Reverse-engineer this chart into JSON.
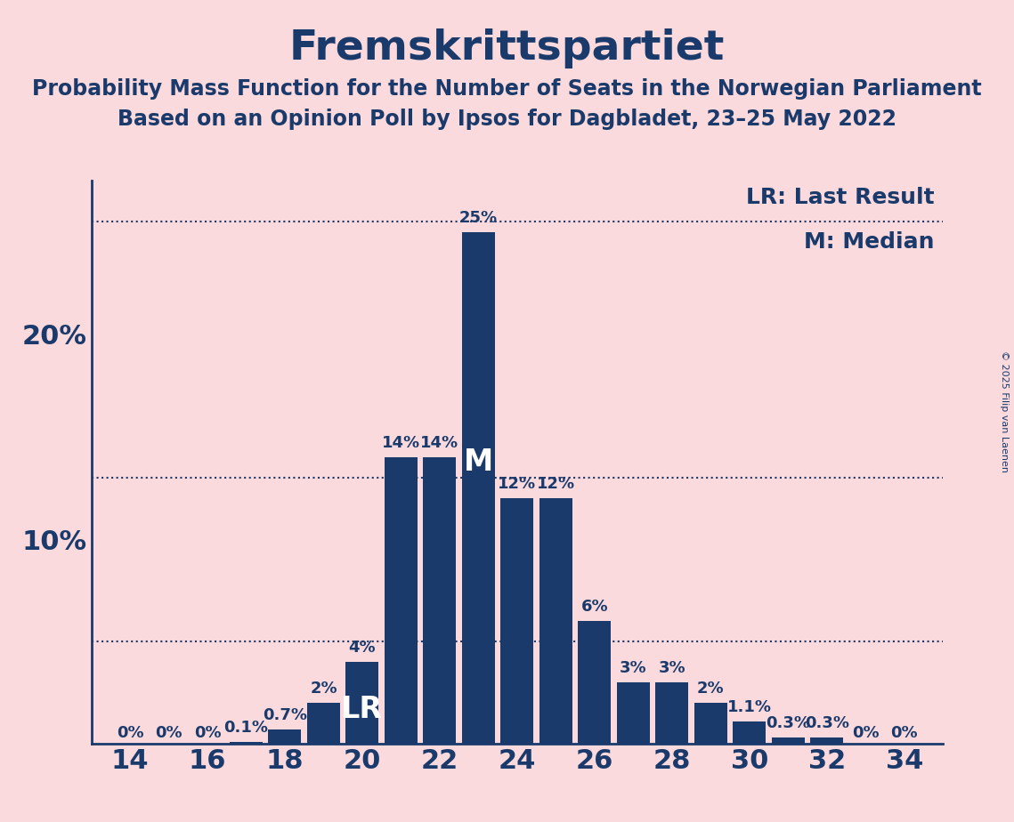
{
  "title": "Fremskrittspartiet",
  "subtitle1": "Probability Mass Function for the Number of Seats in the Norwegian Parliament",
  "subtitle2": "Based on an Opinion Poll by Ipsos for Dagbladet, 23–25 May 2022",
  "copyright": "© 2025 Filip van Laenen",
  "seats": [
    14,
    15,
    16,
    17,
    18,
    19,
    20,
    21,
    22,
    23,
    24,
    25,
    26,
    27,
    28,
    29,
    30,
    31,
    32,
    33,
    34
  ],
  "probabilities": [
    0.0,
    0.0,
    0.0,
    0.1,
    0.7,
    2.0,
    4.0,
    14.0,
    14.0,
    25.0,
    12.0,
    12.0,
    6.0,
    3.0,
    3.0,
    2.0,
    1.1,
    0.3,
    0.3,
    0.0,
    0.0
  ],
  "bar_color": "#1a3a6b",
  "background_color": "#fadadd",
  "text_color": "#1a3a6b",
  "last_result_seat": 20,
  "median_seat": 23,
  "lr_label": "LR: Last Result",
  "median_label": "M: Median",
  "dotted_line_values": [
    5.0,
    13.0,
    25.5
  ],
  "bar_labels": [
    "0%",
    "0%",
    "0%",
    "0.1%",
    "0.7%",
    "2%",
    "4%",
    "14%",
    "14%",
    "25%",
    "12%",
    "12%",
    "6%",
    "3%",
    "3%",
    "2%",
    "1.1%",
    "0.3%",
    "0.3%",
    "0%",
    "0%"
  ],
  "xticks": [
    14,
    16,
    18,
    20,
    22,
    24,
    26,
    28,
    30,
    32,
    34
  ],
  "ylim": [
    0,
    27.5
  ],
  "xlim": [
    13.0,
    35.0
  ],
  "title_fontsize": 34,
  "subtitle_fontsize": 17,
  "axis_label_fontsize": 22,
  "bar_label_fontsize": 13,
  "legend_fontsize": 18,
  "inbar_fontsize": 24
}
